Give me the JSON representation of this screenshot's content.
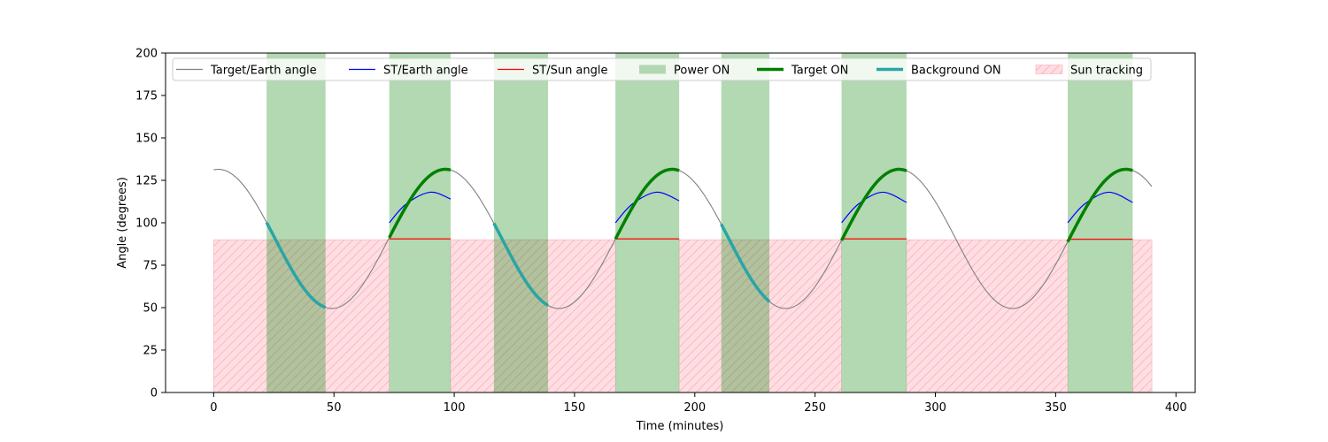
{
  "chart_data": {
    "type": "line",
    "title": "",
    "xlabel": "Time (minutes)",
    "ylabel": "Angle (degrees)",
    "xlim": [
      -20,
      408
    ],
    "ylim": [
      0,
      200
    ],
    "x_ticks": [
      0,
      50,
      100,
      150,
      200,
      250,
      300,
      350,
      400
    ],
    "y_ticks": [
      0,
      25,
      50,
      75,
      100,
      125,
      150,
      175,
      200
    ],
    "grid": false,
    "legend_position": "top",
    "colors": {
      "target_earth": "#808080",
      "st_earth": "#0000ff",
      "st_sun": "#ff0000",
      "power_on": "#b2d8b2",
      "target_on": "#008000",
      "background_on": "#2aa5a5",
      "sun_tracking_fill": "#ffdde2",
      "sun_tracking_hatch": "#f7b8c0"
    },
    "legend": [
      {
        "key": "target_earth",
        "label": "Target/Earth angle",
        "kind": "line"
      },
      {
        "key": "st_earth",
        "label": "ST/Earth angle",
        "kind": "line"
      },
      {
        "key": "st_sun",
        "label": "ST/Sun angle",
        "kind": "line"
      },
      {
        "key": "power_on",
        "label": "Power ON",
        "kind": "patch"
      },
      {
        "key": "target_on",
        "label": "Target ON",
        "kind": "thick"
      },
      {
        "key": "background_on",
        "label": "Background ON",
        "kind": "thick"
      },
      {
        "key": "sun_tracking",
        "label": "Sun tracking",
        "kind": "hatch"
      }
    ],
    "target_earth_curve": {
      "x_start": 0,
      "x_end": 390,
      "mean": 90.5,
      "amplitude": 41,
      "period": 94.3,
      "peak_at": 2
    },
    "power_on_intervals": [
      [
        22,
        46.5
      ],
      [
        73,
        98.5
      ],
      [
        116.5,
        139
      ],
      [
        167,
        193.5
      ],
      [
        211,
        231
      ],
      [
        261,
        288
      ],
      [
        355,
        382
      ]
    ],
    "sun_tracking_intervals": [
      [
        0,
        73
      ],
      [
        98.5,
        167
      ],
      [
        193.5,
        261
      ],
      [
        288,
        355
      ],
      [
        382,
        390
      ]
    ],
    "sun_tracking_level": 90,
    "target_on_intervals": [
      [
        73,
        98.5
      ],
      [
        167,
        193.5
      ],
      [
        261,
        288
      ],
      [
        355,
        382
      ]
    ],
    "background_on_intervals": [
      [
        22,
        46.5
      ],
      [
        116.5,
        139
      ],
      [
        211,
        231
      ]
    ],
    "st_earth_arcs": [
      {
        "x": [
          73,
          80,
          90,
          98.5
        ],
        "y": [
          100,
          111,
          118,
          114
        ]
      },
      {
        "x": [
          167,
          174,
          184,
          193.5
        ],
        "y": [
          100,
          111,
          118,
          113
        ]
      },
      {
        "x": [
          261,
          268,
          278,
          288
        ],
        "y": [
          100,
          111,
          118,
          112
        ]
      },
      {
        "x": [
          355,
          362,
          372,
          382
        ],
        "y": [
          100,
          111,
          118,
          112
        ]
      }
    ],
    "st_sun_segments": [
      {
        "x": [
          73,
          98.5
        ],
        "y": [
          90.5,
          90.5
        ]
      },
      {
        "x": [
          167,
          193.5
        ],
        "y": [
          90.5,
          90.5
        ]
      },
      {
        "x": [
          261,
          288
        ],
        "y": [
          90.5,
          90.5
        ]
      },
      {
        "x": [
          355,
          382
        ],
        "y": [
          90.3,
          90.3
        ]
      }
    ]
  }
}
